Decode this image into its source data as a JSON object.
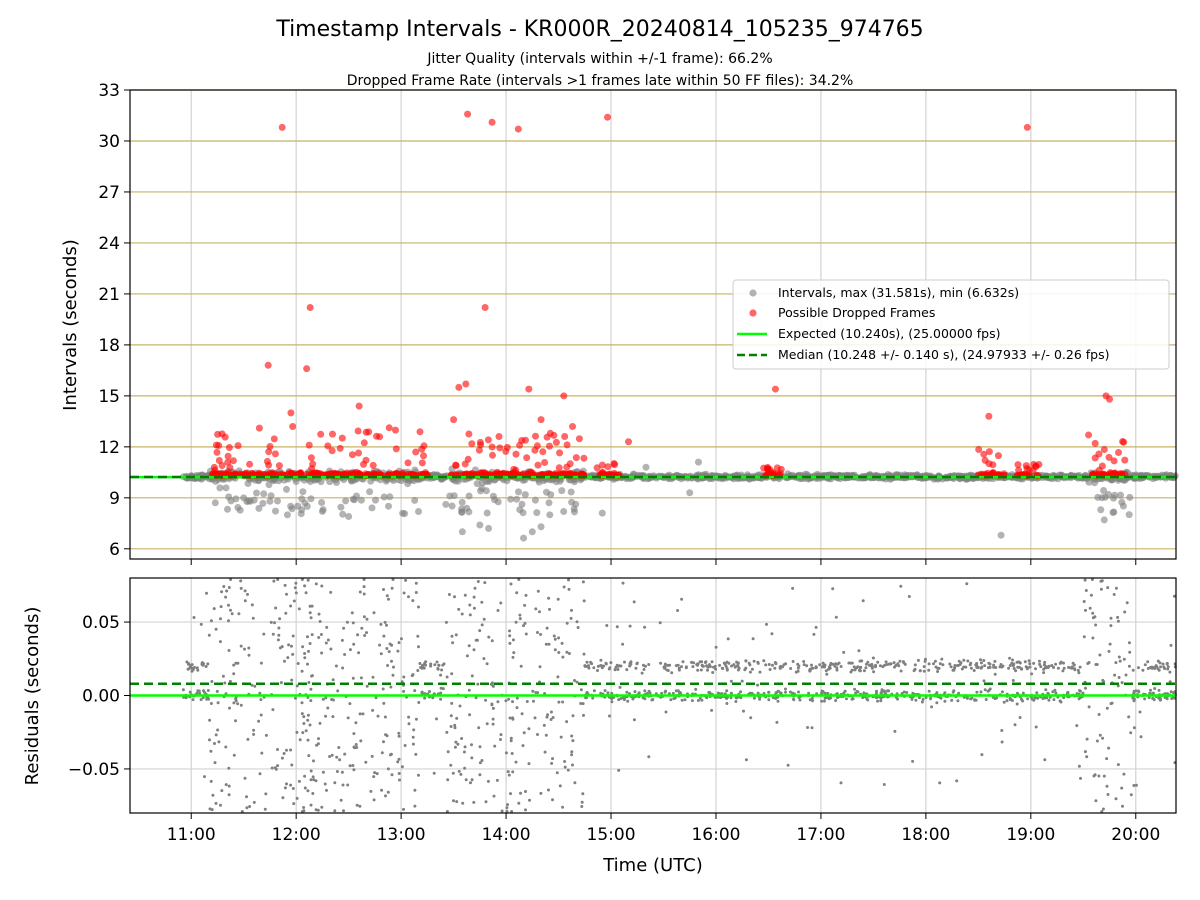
{
  "title": "Timestamp Intervals - KR000R_20240814_105235_974765",
  "subtitle_1": "Jitter Quality (intervals within +/-1 frame): 66.2%",
  "subtitle_2": "Dropped Frame Rate (intervals >1 frames late within 50 FF files): 34.2%",
  "colors": {
    "intervals": "#808080",
    "dropped": "#ff0000",
    "expected": "#00ff00",
    "median": "#008000",
    "grid_gold": "#c8b266",
    "grid_gray": "#d3d3d3"
  },
  "chart_data": [
    {
      "type": "scatter",
      "panel": "intervals",
      "ylabel": "Intervals (seconds)",
      "xlabel": "",
      "ylim": [
        5.4,
        33
      ],
      "xlim": [
        "10:25",
        "20:23"
      ],
      "yticks": [
        "6",
        "9",
        "12",
        "15",
        "18",
        "21",
        "24",
        "27",
        "30",
        "33"
      ],
      "ytick_values": [
        6,
        9,
        12,
        15,
        18,
        21,
        24,
        27,
        30,
        33
      ],
      "grid": true,
      "legend_position": "center-right",
      "legend": [
        "Intervals, max (31.581s), min (6.632s)",
        "Possible Dropped Frames",
        "Expected (10.240s), (25.00000 fps)",
        "Median (10.248 +/- 0.140 s), (24.97933 +/- 0.26 fps)"
      ],
      "expected": 10.24,
      "median": 10.248,
      "max": 31.581,
      "min": 6.632,
      "series": [
        {
          "name": "Intervals, max (31.581s), min (6.632s)",
          "note": "dense band near 10.24 s from 10:55 to 20:23",
          "points": [
            [
              "11:30",
              9.0
            ],
            [
              "11:45",
              8.8
            ],
            [
              "11:55",
              8.0
            ],
            [
              "12:05",
              8.7
            ],
            [
              "12:15",
              8.2
            ],
            [
              "12:30",
              7.9
            ],
            [
              "13:35",
              7.0
            ],
            [
              "13:45",
              7.4
            ],
            [
              "13:50",
              7.2
            ],
            [
              "14:10",
              6.632
            ],
            [
              "14:15",
              7.0
            ],
            [
              "14:20",
              7.3
            ],
            [
              "14:25",
              8.0
            ],
            [
              "14:55",
              8.1
            ],
            [
              "15:20",
              10.8
            ],
            [
              "15:45",
              9.3
            ],
            [
              "15:50",
              11.1
            ],
            [
              "18:43",
              6.8
            ],
            [
              "19:40",
              8.3
            ],
            [
              "19:42",
              7.7
            ]
          ]
        },
        {
          "name": "Possible Dropped Frames",
          "points": [
            [
              "11:52",
              30.8
            ],
            [
              "13:38",
              31.581
            ],
            [
              "13:52",
              31.1
            ],
            [
              "14:07",
              30.7
            ],
            [
              "14:58",
              31.4
            ],
            [
              "18:58",
              30.8
            ],
            [
              "12:08",
              20.2
            ],
            [
              "13:48",
              20.2
            ],
            [
              "11:44",
              16.8
            ],
            [
              "12:06",
              16.6
            ],
            [
              "13:33",
              15.5
            ],
            [
              "13:37",
              15.7
            ],
            [
              "14:13",
              15.4
            ],
            [
              "14:33",
              15.0
            ],
            [
              "16:34",
              15.4
            ],
            [
              "19:43",
              15.0
            ],
            [
              "19:45",
              14.8
            ],
            [
              "12:36",
              14.4
            ],
            [
              "11:57",
              14.0
            ],
            [
              "18:36",
              13.8
            ],
            [
              "13:30",
              13.6
            ],
            [
              "14:20",
              13.6
            ],
            [
              "14:38",
              13.2
            ],
            [
              "15:10",
              12.3
            ],
            [
              "19:33",
              12.7
            ]
          ]
        },
        {
          "name": "Expected (10.240s), (25.00000 fps)",
          "values": [
            10.24
          ]
        },
        {
          "name": "Median (10.248 +/- 0.140 s), (24.97933 +/- 0.26 fps)",
          "values": [
            10.248
          ]
        }
      ]
    },
    {
      "type": "scatter",
      "panel": "residuals",
      "ylabel": "Residuals (seconds)",
      "xlabel": "Time (UTC)",
      "ylim": [
        -0.08,
        0.08
      ],
      "xlim": [
        "10:25",
        "20:23"
      ],
      "yticks": [
        "−0.05",
        "0.00",
        "0.05"
      ],
      "ytick_values": [
        -0.05,
        0.0,
        0.05
      ],
      "xticks": [
        "11:00",
        "12:00",
        "13:00",
        "14:00",
        "15:00",
        "16:00",
        "17:00",
        "18:00",
        "19:00",
        "20:00"
      ],
      "grid": true,
      "expected": 0.0,
      "median": 0.008,
      "note": "residual values of intervals vs expected 10.240 s; two bands near 0.00 and +0.02"
    }
  ]
}
